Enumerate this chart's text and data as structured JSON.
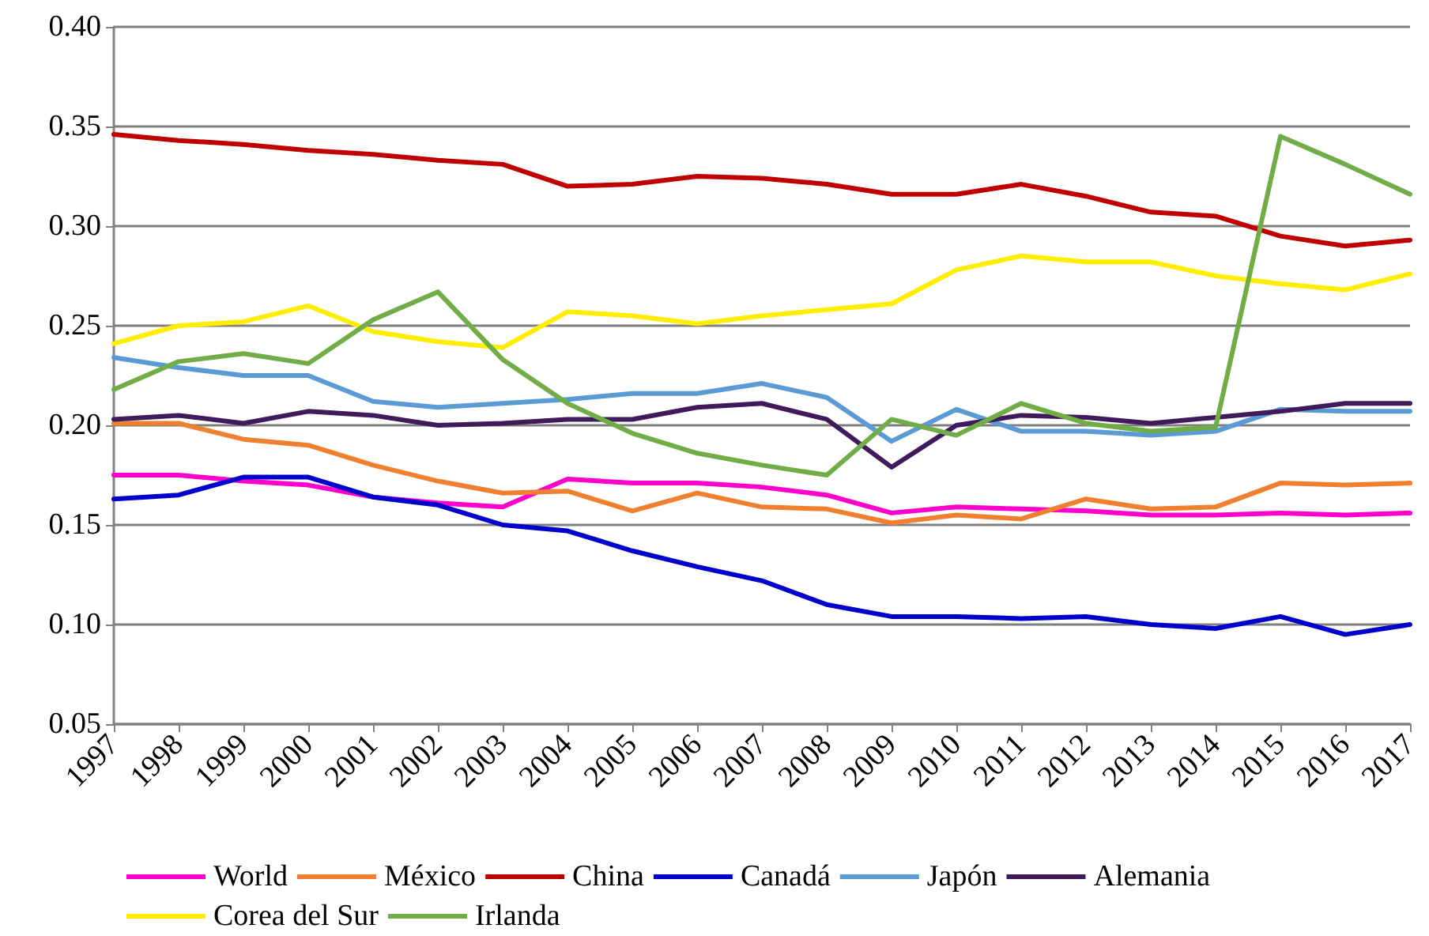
{
  "chart_data": {
    "type": "line",
    "categories": [
      "1997",
      "1998",
      "1999",
      "2000",
      "2001",
      "2002",
      "2003",
      "2004",
      "2005",
      "2006",
      "2007",
      "2008",
      "2009",
      "2010",
      "2011",
      "2012",
      "2013",
      "2014",
      "2015",
      "2016",
      "2017"
    ],
    "ylim": [
      0.05,
      0.4
    ],
    "yticks": [
      0.05,
      {
        "value": 0.1,
        "label": "0.10"
      },
      0.15,
      {
        "value": 0.2,
        "label": "0.20"
      },
      0.25,
      {
        "value": 0.3,
        "label": "0.30"
      },
      0.35,
      {
        "value": 0.4,
        "label": "0.40"
      }
    ],
    "grid": "y",
    "legend": "bottom",
    "marker": "none",
    "line_style": "solid",
    "series": [
      {
        "name": "World",
        "color": "#ff00cc",
        "values": [
          0.175,
          0.175,
          0.172,
          0.17,
          0.164,
          0.161,
          0.159,
          0.173,
          0.171,
          0.171,
          0.169,
          0.165,
          0.156,
          0.159,
          0.158,
          0.157,
          0.155,
          0.155,
          0.156,
          0.155,
          0.156
        ]
      },
      {
        "name": "México",
        "color": "#f08030",
        "values": [
          0.201,
          0.201,
          0.193,
          0.19,
          0.18,
          0.172,
          0.166,
          0.167,
          0.157,
          0.166,
          0.159,
          0.158,
          0.151,
          0.155,
          0.153,
          0.163,
          0.158,
          0.159,
          0.171,
          0.17,
          0.171
        ]
      },
      {
        "name": "China",
        "color": "#c00000",
        "values": [
          0.346,
          0.343,
          0.341,
          0.338,
          0.336,
          0.333,
          0.331,
          0.32,
          0.321,
          0.325,
          0.324,
          0.321,
          0.316,
          0.316,
          0.321,
          0.315,
          0.307,
          0.305,
          0.295,
          0.29,
          0.293
        ]
      },
      {
        "name": "Canadá",
        "color": "#0000cc",
        "values": [
          0.163,
          0.165,
          0.174,
          0.174,
          0.164,
          0.16,
          0.15,
          0.147,
          0.137,
          0.129,
          0.122,
          0.11,
          0.104,
          0.104,
          0.103,
          0.104,
          0.1,
          0.098,
          0.104,
          0.095,
          0.1
        ]
      },
      {
        "name": "Japón",
        "color": "#5b9bd5",
        "values": [
          0.234,
          0.229,
          0.225,
          0.225,
          0.212,
          0.209,
          0.211,
          0.213,
          0.216,
          0.216,
          0.221,
          0.214,
          0.192,
          0.208,
          0.197,
          0.197,
          0.195,
          0.197,
          0.208,
          0.207,
          0.207
        ]
      },
      {
        "name": "Alemania",
        "color": "#3f1b5c",
        "values": [
          0.203,
          0.205,
          0.201,
          0.207,
          0.205,
          0.2,
          0.201,
          0.203,
          0.203,
          0.209,
          0.211,
          0.203,
          0.179,
          0.2,
          0.205,
          0.204,
          0.201,
          0.204,
          0.207,
          0.211,
          0.211
        ]
      },
      {
        "name": "Corea del Sur",
        "color": "#ffee00",
        "values": [
          0.241,
          0.25,
          0.252,
          0.26,
          0.247,
          0.242,
          0.239,
          0.257,
          0.255,
          0.251,
          0.255,
          0.258,
          0.261,
          0.278,
          0.285,
          0.282,
          0.282,
          0.275,
          0.271,
          0.268,
          0.276
        ]
      },
      {
        "name": "Irlanda",
        "color": "#70ad47",
        "values": [
          0.218,
          0.232,
          0.236,
          0.231,
          0.253,
          0.267,
          0.233,
          0.211,
          0.196,
          0.186,
          0.18,
          0.175,
          0.203,
          0.195,
          0.211,
          0.201,
          0.197,
          0.199,
          0.345,
          0.331,
          0.316
        ]
      }
    ]
  }
}
